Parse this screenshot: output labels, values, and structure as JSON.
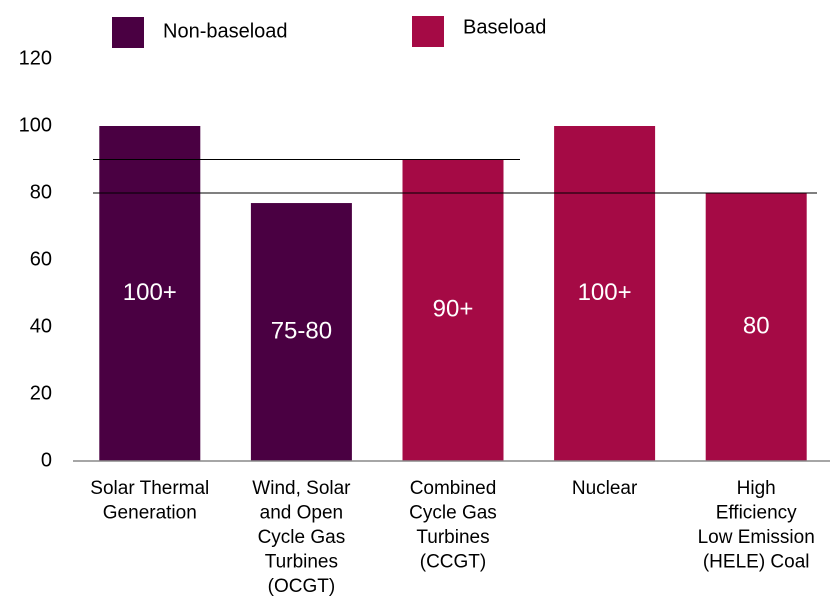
{
  "chart_data": {
    "type": "bar",
    "categories": [
      [
        "Solar Thermal",
        "Generation"
      ],
      [
        "Wind, Solar",
        "and Open",
        "Cycle Gas",
        "Turbines",
        "(OCGT)"
      ],
      [
        "Combined",
        "Cycle Gas",
        "Turbines",
        "(CCGT)"
      ],
      [
        "Nuclear"
      ],
      [
        "High",
        "Efficiency",
        "Low Emission",
        "(HELE) Coal"
      ]
    ],
    "series": [
      {
        "name": "Non-baseload",
        "color": "#4a0042",
        "values": [
          100,
          77,
          null,
          null,
          null
        ],
        "value_labels": [
          "100+",
          "75-80",
          null,
          null,
          null
        ]
      },
      {
        "name": "Baseload",
        "color": "#a50a45",
        "values": [
          null,
          null,
          90,
          100,
          80
        ],
        "value_labels": [
          null,
          null,
          "90+",
          "100+",
          "80"
        ]
      }
    ],
    "reference_lines": [
      90,
      80
    ],
    "ylim": [
      0,
      120
    ],
    "yticks": [
      0,
      20,
      40,
      60,
      80,
      100,
      120
    ]
  }
}
